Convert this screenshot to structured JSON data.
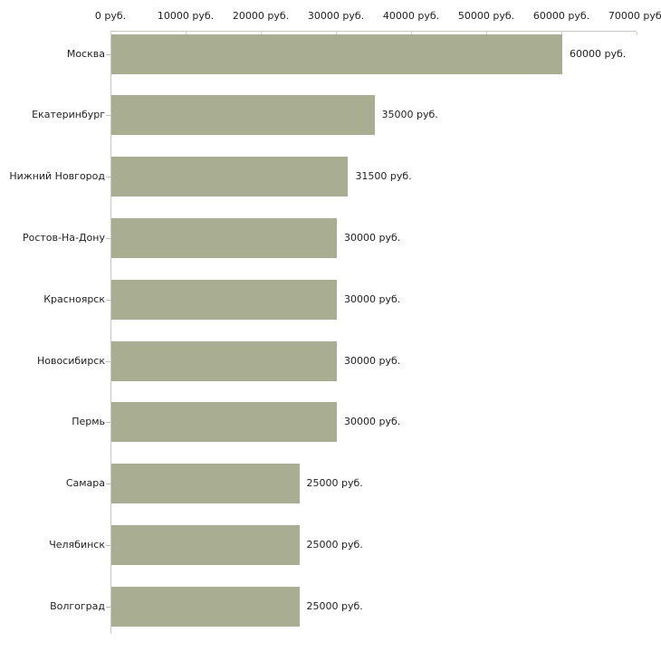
{
  "chart_data": {
    "type": "bar",
    "orientation": "horizontal",
    "title": "",
    "categories": [
      "Москва",
      "Екатеринбург",
      "Нижний Новгород",
      "Ростов-На-Дону",
      "Красноярск",
      "Новосибирск",
      "Пермь",
      "Самара",
      "Челябинск",
      "Волгоград"
    ],
    "values": [
      60000,
      35000,
      31500,
      30000,
      30000,
      30000,
      30000,
      25000,
      25000,
      25000
    ],
    "value_labels": [
      "60000 руб.",
      "35000 руб.",
      "31500 руб.",
      "30000 руб.",
      "30000 руб.",
      "30000 руб.",
      "30000 руб.",
      "25000 руб.",
      "25000 руб.",
      "25000 руб."
    ],
    "x_axis": {
      "position": "top",
      "min": 0,
      "max": 70000,
      "tick_values": [
        0,
        10000,
        20000,
        30000,
        40000,
        50000,
        60000,
        70000
      ],
      "tick_labels": [
        "0 руб.",
        "10000 руб.",
        "20000 руб.",
        "30000 руб.",
        "40000 руб.",
        "50000 руб.",
        "60000 руб.",
        "70000 руб."
      ]
    },
    "grid": false,
    "legend": false,
    "colors": {
      "bar_fill": "#a9ae93",
      "axis_line": "#c9c9c0",
      "x_tick_mark": "#d2d4ba",
      "category_tick_mark": "#c2c2b8",
      "text": "#222222",
      "background": "#ffffff"
    }
  }
}
